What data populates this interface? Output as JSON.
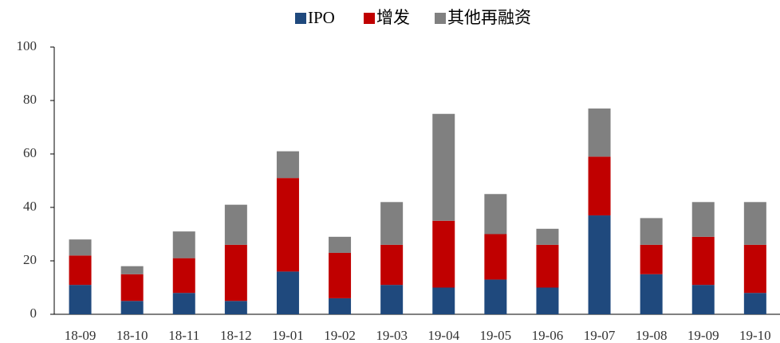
{
  "chart_data": {
    "type": "stacked_bar",
    "categories": [
      "18-09",
      "18-10",
      "18-11",
      "18-12",
      "19-01",
      "19-02",
      "19-03",
      "19-04",
      "19-05",
      "19-06",
      "19-07",
      "19-08",
      "19-09",
      "19-10"
    ],
    "series": [
      {
        "name": "IPO",
        "color": "#1f497d",
        "values": [
          11,
          5,
          8,
          5,
          16,
          6,
          11,
          10,
          13,
          10,
          37,
          15,
          11,
          8
        ]
      },
      {
        "name": "增发",
        "color": "#c00000",
        "values": [
          11,
          10,
          13,
          21,
          35,
          17,
          15,
          25,
          17,
          16,
          22,
          11,
          18,
          18
        ]
      },
      {
        "name": "其他再融资",
        "color": "#808080",
        "values": [
          6,
          3,
          10,
          15,
          10,
          6,
          16,
          40,
          15,
          6,
          18,
          10,
          13,
          16
        ]
      }
    ],
    "ylim": [
      0,
      100
    ],
    "yticks": [
      0,
      20,
      40,
      60,
      80,
      100
    ],
    "grid": false,
    "legend": "top"
  }
}
